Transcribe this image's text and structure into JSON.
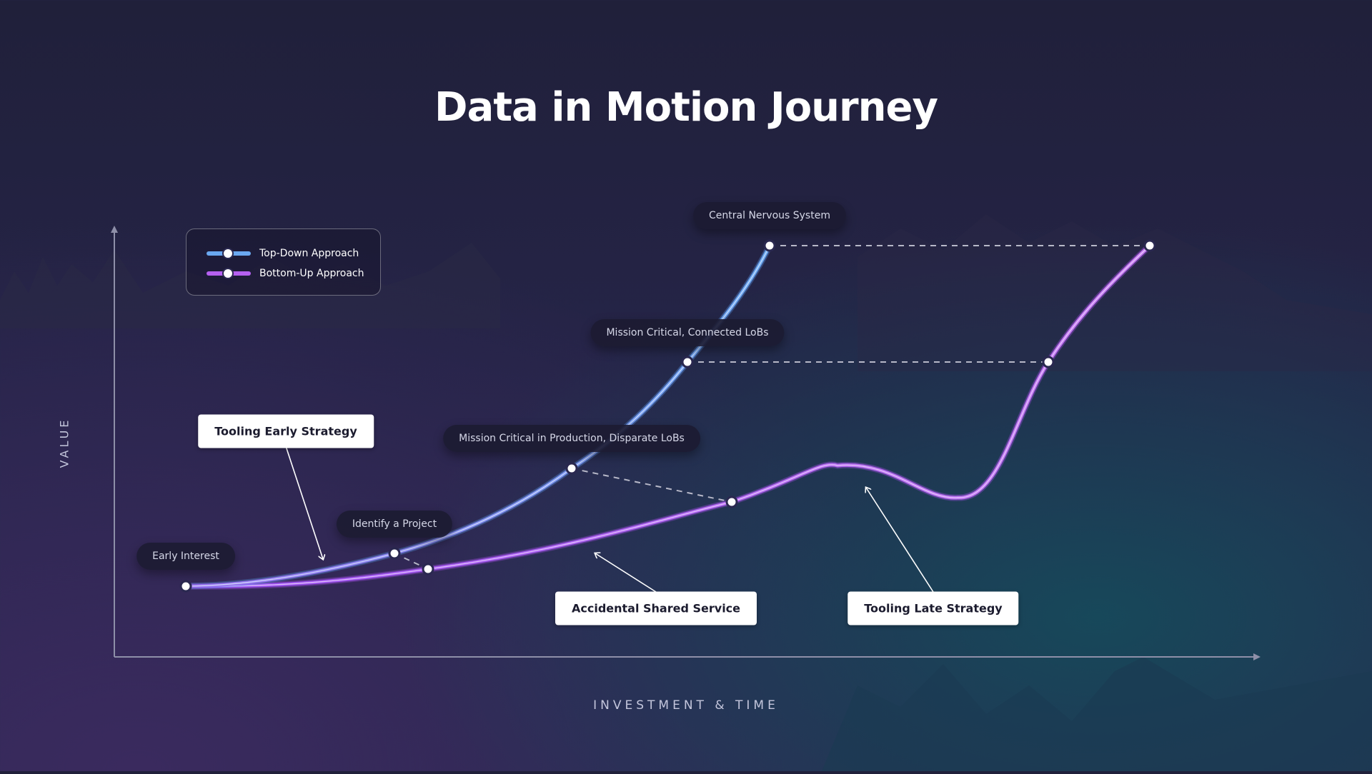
{
  "title": "Data in Motion Journey",
  "xlabel": "INVESTMENT & TIME",
  "ylabel": "VALUE",
  "legend": [
    {
      "label": "Top-Down Approach",
      "color": "#6aa8f0"
    },
    {
      "label": "Bottom-Up Approach",
      "color": "#b560f0"
    }
  ],
  "colors": {
    "top_down": "#6aa8f0",
    "bottom_up": "#b560f0",
    "axis": "#8e8fa8",
    "connector": "#b7b8c8"
  },
  "stages": [
    {
      "label": "Early Interest"
    },
    {
      "label": "Identify a Project"
    },
    {
      "label": "Mission Critical in Production, Disparate LoBs"
    },
    {
      "label": "Mission Critical, Connected LoBs"
    },
    {
      "label": "Central Nervous System"
    }
  ],
  "callouts": [
    {
      "label": "Tooling Early Strategy"
    },
    {
      "label": "Accidental Shared Service"
    },
    {
      "label": "Tooling Late Strategy"
    }
  ]
}
